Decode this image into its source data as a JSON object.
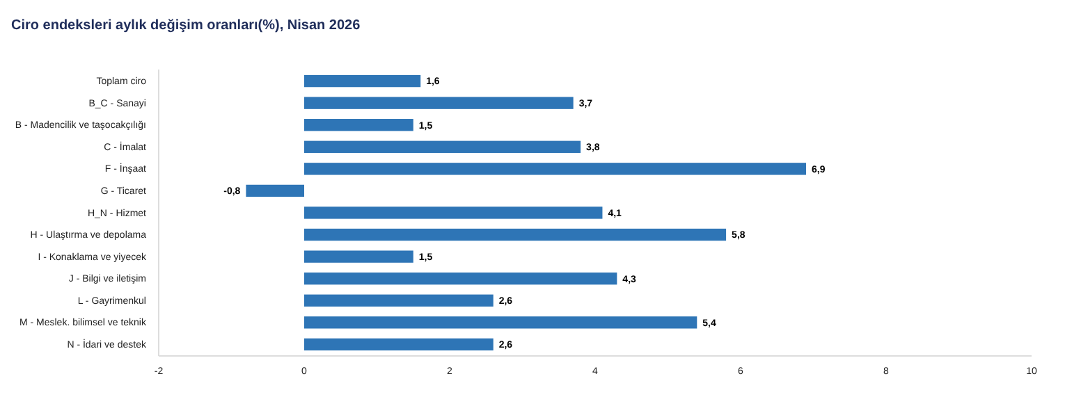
{
  "chart_data": {
    "type": "bar",
    "orientation": "horizontal",
    "title": "Ciro endeksleri aylık değişim oranları(%), Nisan 2026",
    "categories": [
      "Toplam ciro",
      "B_C - Sanayi",
      "B - Madencilik ve taşocakçılığı",
      "C - İmalat",
      "F - İnşaat",
      "G - Ticaret",
      "H_N - Hizmet",
      "H - Ulaştırma ve depolama",
      "I - Konaklama ve yiyecek",
      "J - Bilgi ve iletişim",
      "L - Gayrimenkul",
      "M - Meslek. bilimsel ve teknik",
      "N - İdari ve destek"
    ],
    "values": [
      1.6,
      3.7,
      1.5,
      3.8,
      6.9,
      -0.8,
      4.1,
      5.8,
      1.5,
      4.3,
      2.6,
      5.4,
      2.6
    ],
    "value_labels": [
      "1,6",
      "3,7",
      "1,5",
      "3,8",
      "6,9",
      "-0,8",
      "4,1",
      "5,8",
      "1,5",
      "4,3",
      "2,6",
      "5,4",
      "2,6"
    ],
    "color": "#2e75b6",
    "xlim": [
      -2,
      10
    ],
    "xticks": [
      -2,
      0,
      2,
      4,
      6,
      8,
      10
    ]
  }
}
